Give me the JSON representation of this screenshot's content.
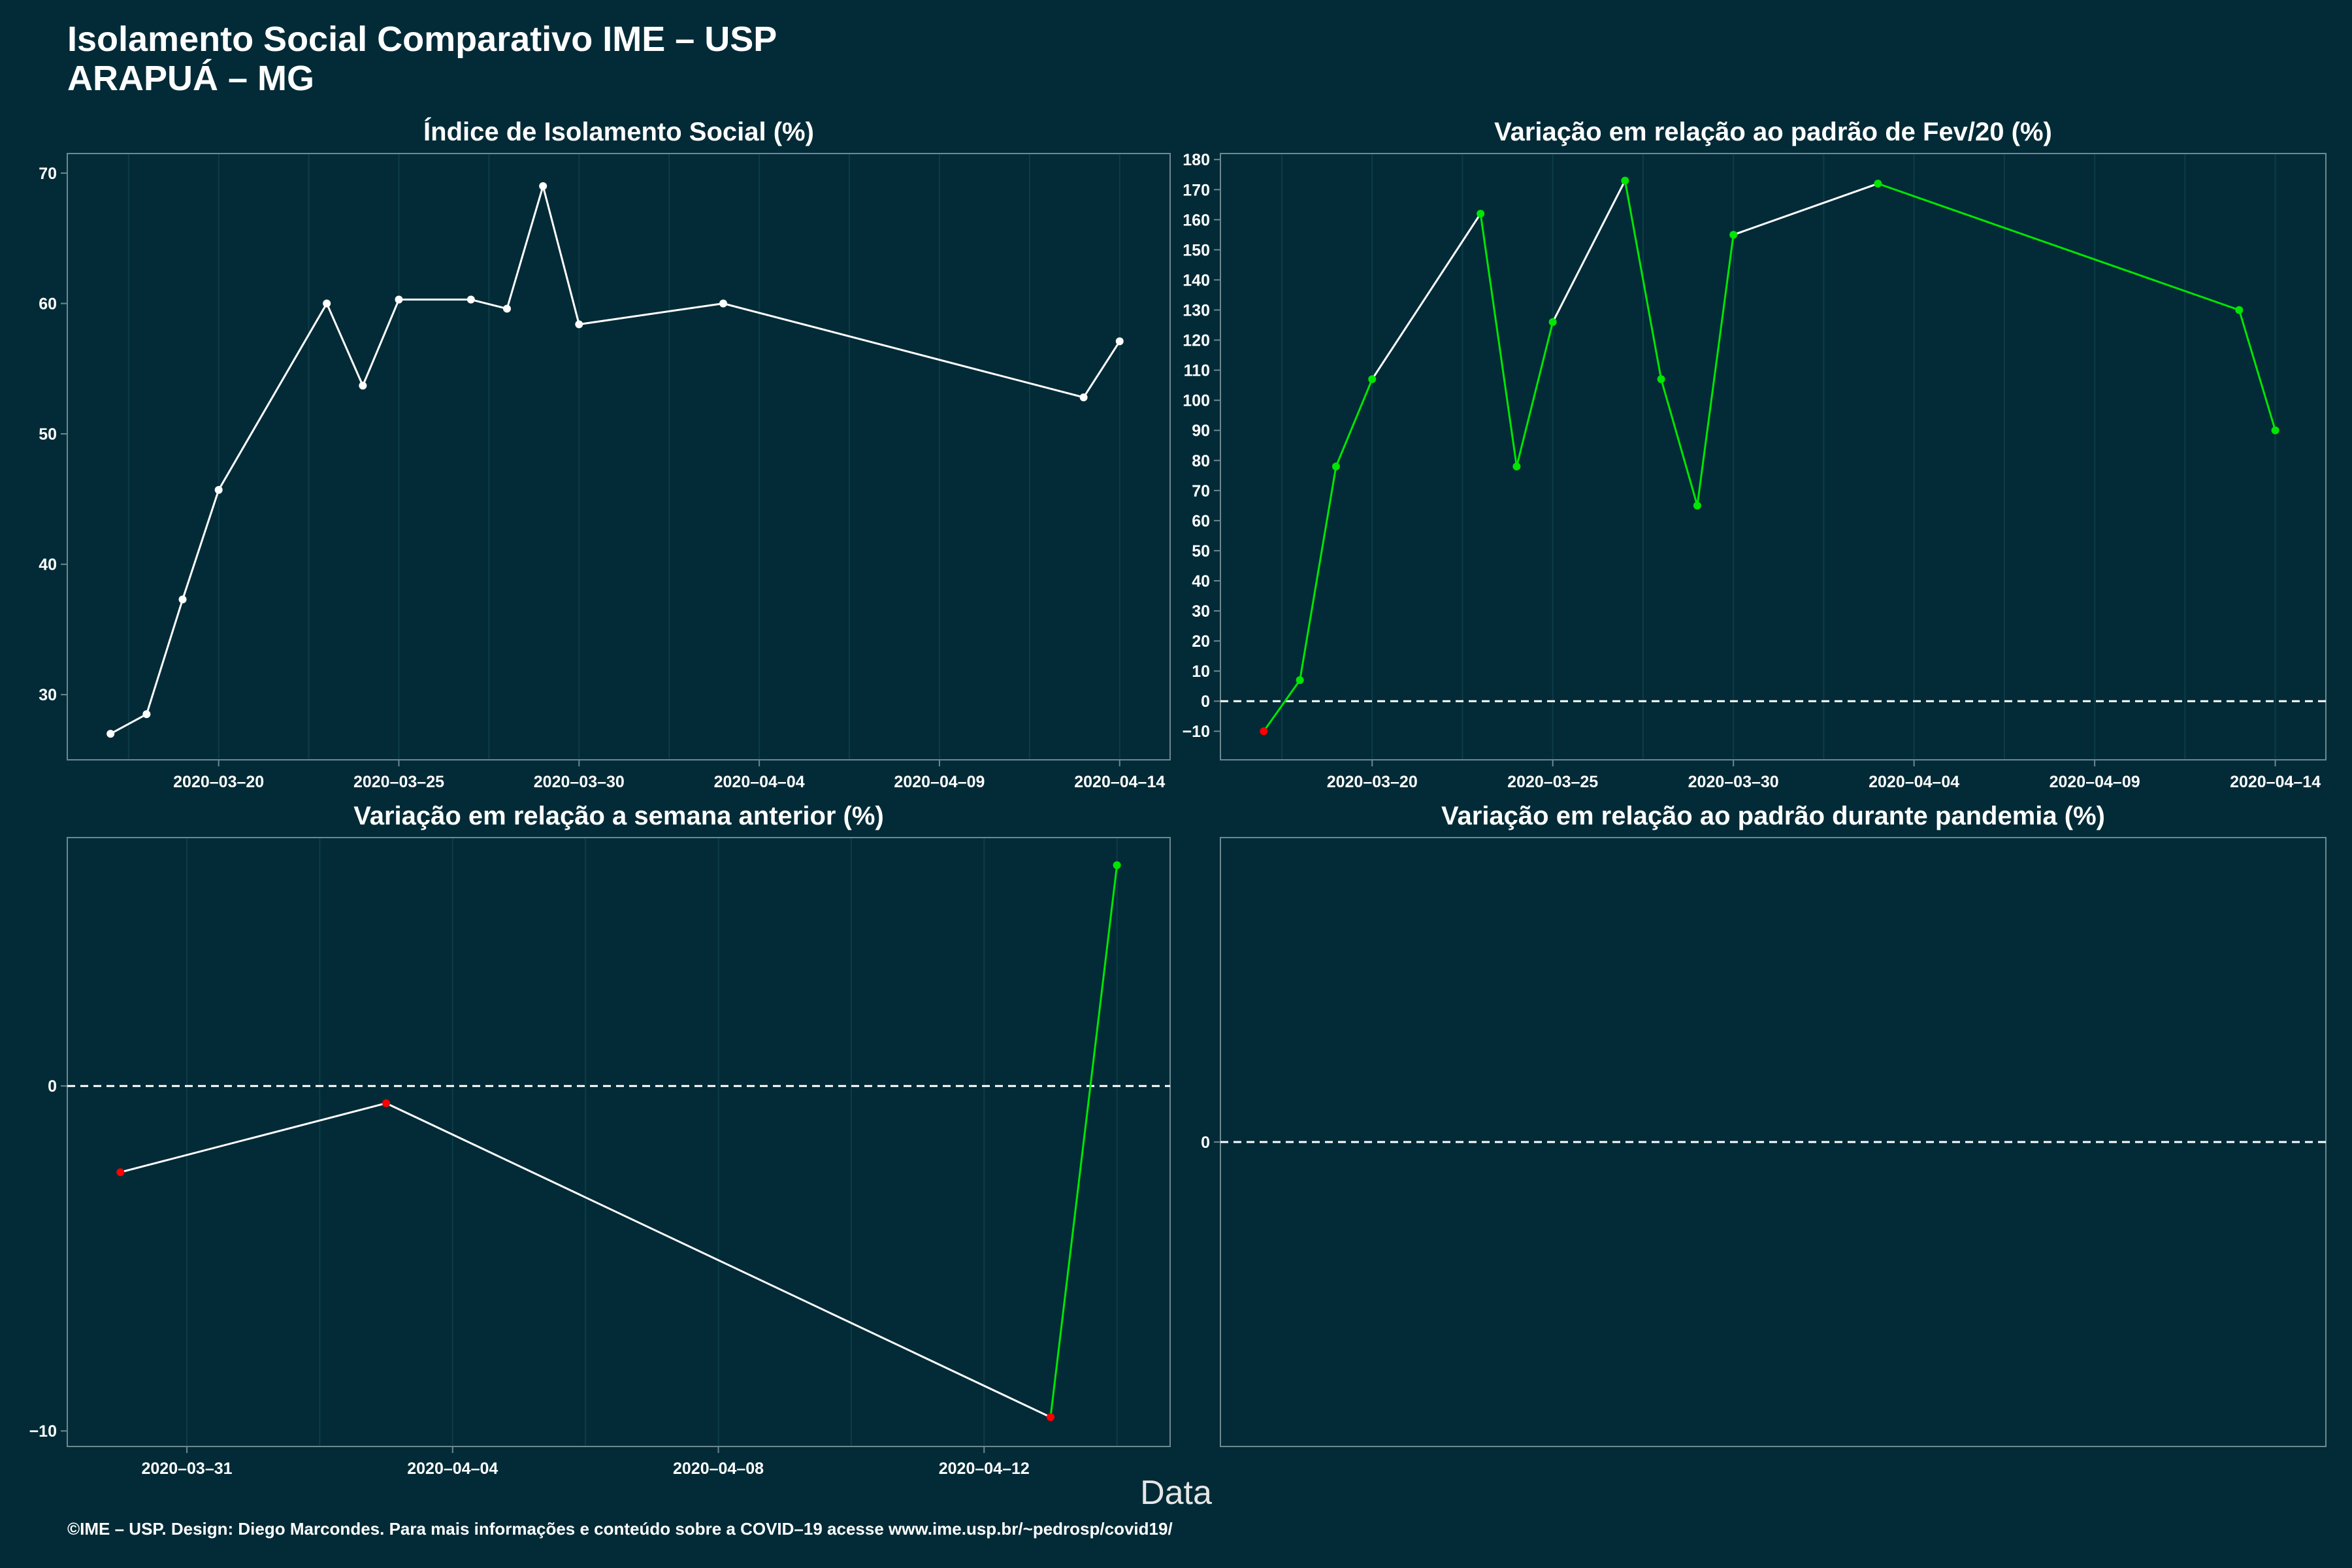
{
  "page": {
    "title": "Isolamento Social Comparativo IME – USP",
    "subtitle": "ARAPUÁ – MG",
    "xlabel": "Data",
    "footer": "©IME – USP. Design: Diego Marcondes. Para mais informações e conteúdo sobre a COVID–19 acesse www.ime.usp.br/~pedrosp/covid19/"
  },
  "colors": {
    "background": "#022b37",
    "line": "#ffffff",
    "up": "#00e600",
    "down": "#ff0000",
    "grid": "#0d3c48",
    "frame": "#6e8890"
  },
  "chart_data": [
    {
      "type": "line",
      "title": "Índice de Isolamento Social (%)",
      "x": [
        "2020-03-17",
        "2020-03-18",
        "2020-03-19",
        "2020-03-20",
        "2020-03-23",
        "2020-03-24",
        "2020-03-25",
        "2020-03-27",
        "2020-03-28",
        "2020-03-29",
        "2020-03-30",
        "2020-04-03",
        "2020-04-13",
        "2020-04-14"
      ],
      "y": [
        27.0,
        28.5,
        37.3,
        45.7,
        60.0,
        53.7,
        60.3,
        60.3,
        59.6,
        69.0,
        58.4,
        60.0,
        52.8,
        57.1
      ],
      "xticks": [
        "2020-03-20",
        "2020-03-25",
        "2020-03-30",
        "2020-04-04",
        "2020-04-09",
        "2020-04-14"
      ],
      "yticks": [
        30,
        40,
        50,
        60,
        70
      ],
      "xlim": [
        "2020-03-15.8",
        "2020-04-15.4"
      ],
      "ylim": [
        25,
        71.5
      ],
      "zero_line": false,
      "grid": true
    },
    {
      "type": "line",
      "title": "Variação em relação ao padrão de Fev/20 (%)",
      "x": [
        "2020-03-17",
        "2020-03-18",
        "2020-03-19",
        "2020-03-20",
        "2020-03-23",
        "2020-03-24",
        "2020-03-25",
        "2020-03-27",
        "2020-03-28",
        "2020-03-29",
        "2020-03-30",
        "2020-04-03",
        "2020-04-13",
        "2020-04-14"
      ],
      "y": [
        -10,
        7,
        78,
        107,
        162,
        78,
        126,
        173,
        107,
        65,
        155,
        172,
        130,
        90
      ],
      "xticks": [
        "2020-03-20",
        "2020-03-25",
        "2020-03-30",
        "2020-04-04",
        "2020-04-09",
        "2020-04-14"
      ],
      "yticks": [
        -10,
        0,
        10,
        20,
        30,
        40,
        50,
        60,
        70,
        80,
        90,
        100,
        110,
        120,
        130,
        140,
        150,
        160,
        170,
        180
      ],
      "xlim": [
        "2020-03-15.8",
        "2020-04-15.4"
      ],
      "ylim": [
        -19.5,
        182
      ],
      "zero_line": true,
      "grid": true
    },
    {
      "type": "line",
      "title": "Variação em relação a semana anterior (%)",
      "x": [
        "2020-03-30",
        "2020-04-03",
        "2020-04-13",
        "2020-04-14"
      ],
      "y": [
        -2.5,
        -0.5,
        -9.6,
        6.4
      ],
      "xticks": [
        "2020-03-31",
        "2020-04-04",
        "2020-04-08",
        "2020-04-12"
      ],
      "yticks": [
        -10,
        0
      ],
      "xlim": [
        "2020-03-29.2",
        "2020-04-14.8"
      ],
      "ylim": [
        -10.45,
        7.2
      ],
      "zero_line": true,
      "grid": true
    },
    {
      "type": "line",
      "title": "Variação em relação ao padrão durante pandemia (%)",
      "x": [],
      "y": [],
      "xticks": [],
      "yticks": [
        0
      ],
      "ylim": [
        -1,
        1
      ],
      "zero_line": true,
      "grid": false
    }
  ]
}
